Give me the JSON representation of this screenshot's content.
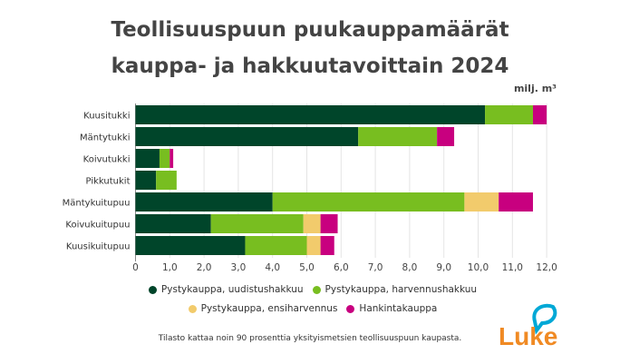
{
  "chart_data": {
    "type": "bar",
    "orientation": "horizontal",
    "stacked": true,
    "title": [
      "Teollisuuspuun puukauppamäärät",
      "kauppa- ja hakkuutavoittain 2024"
    ],
    "unit": "milj. m³",
    "categories": [
      "Kuusitukki",
      "Mäntytukki",
      "Koivutukki",
      "Pikkutukit",
      "Mäntykuitupuu",
      "Koivukuitupuu",
      "Kuusikuitupuu"
    ],
    "series": [
      {
        "name": "Pystykauppa, uudistushakkuu",
        "color": "#00452a",
        "values": [
          10.2,
          6.5,
          0.7,
          0.6,
          4.0,
          2.2,
          3.2
        ]
      },
      {
        "name": "Pystykauppa, harvennushakkuu",
        "color": "#78be20",
        "values": [
          1.4,
          2.3,
          0.3,
          0.6,
          5.6,
          2.7,
          1.8
        ]
      },
      {
        "name": "Pystykauppa, ensiharvennus",
        "color": "#f2cb6c",
        "values": [
          0,
          0,
          0,
          0,
          1.0,
          0.5,
          0.4
        ]
      },
      {
        "name": "Hankintakauppa",
        "color": "#c8007f",
        "values": [
          0.4,
          0.5,
          0.1,
          0,
          1.0,
          0.5,
          0.4
        ]
      }
    ],
    "xlim": [
      0,
      12.2
    ],
    "xticks": [
      "0",
      "1,0",
      "2,0",
      "3,0",
      "4,0",
      "5,0",
      "6,0",
      "7,0",
      "8,0",
      "9,0",
      "10,0",
      "11,0",
      "12,0"
    ],
    "grid": true,
    "legend_placement": "bottom"
  },
  "note": "Tilasto kattaa noin 90 prosenttia yksityismetsien teollisuuspuun kaupasta.",
  "logo": {
    "text": "Luke",
    "color": "#f08a24",
    "accent": "#00a8d6"
  }
}
